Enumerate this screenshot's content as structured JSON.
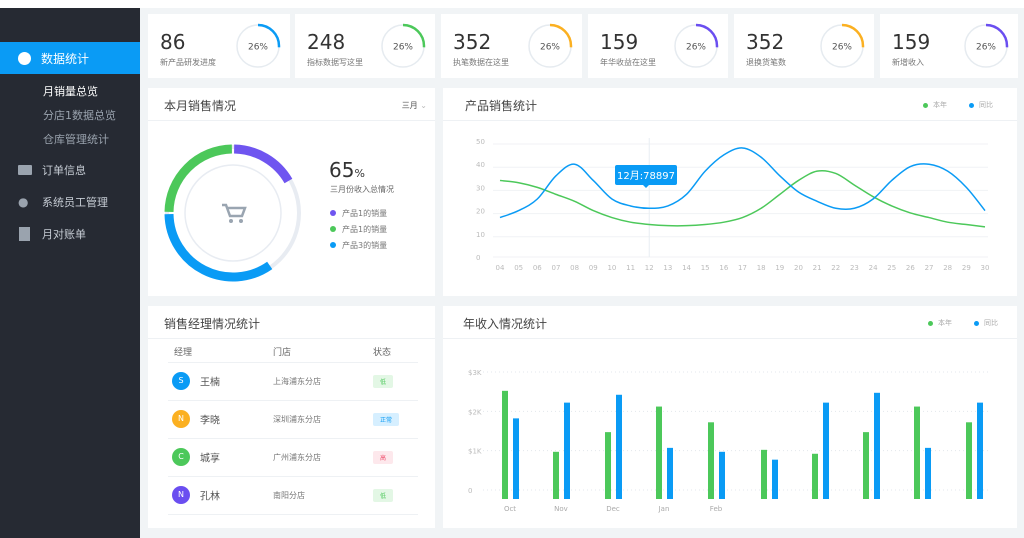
{
  "sidebar": {
    "active": "数据统计",
    "sub_items": [
      "月销量总览",
      "分店1数据总览",
      "仓库管理统计"
    ],
    "items": [
      "订单信息",
      "系统员工管理",
      "月对账单"
    ]
  },
  "stats": [
    {
      "value": "86",
      "label": "新产品研发进度",
      "percent": "26%",
      "color": "#0a9bf5"
    },
    {
      "value": "248",
      "label": "指标数据写这里",
      "percent": "26%",
      "color": "#4cc85a"
    },
    {
      "value": "352",
      "label": "执笔数据在这里",
      "percent": "26%",
      "color": "#fbb021"
    },
    {
      "value": "159",
      "label": "年华收益在这里",
      "percent": "26%",
      "color": "#6a4ef0"
    },
    {
      "value": "352",
      "label": "退换货笔数",
      "percent": "26%",
      "color": "#fbb021"
    },
    {
      "value": "159",
      "label": "新增收入",
      "percent": "26%",
      "color": "#6a4ef0"
    }
  ],
  "monthly": {
    "title": "本月销售情况",
    "month_select": "三月",
    "percent": "65",
    "percent_unit": "%",
    "subtitle": "三月份收入总情况",
    "legend": [
      {
        "label": "产品1的销量",
        "color": "#6f55f0"
      },
      {
        "label": "产品1的销量",
        "color": "#4cc85a"
      },
      {
        "label": "产品3的销量",
        "color": "#0a9bf5"
      }
    ]
  },
  "chart_data": [
    {
      "type": "line",
      "title": "产品销售统计",
      "legend": [
        "本年",
        "同比"
      ],
      "tooltip": "12月:78897",
      "ylim": [
        0,
        50
      ],
      "yticks": [
        "0",
        "10",
        "20",
        "30",
        "40",
        "50"
      ],
      "x": [
        "04",
        "05",
        "06",
        "07",
        "08",
        "09",
        "10",
        "11",
        "12",
        "13",
        "14",
        "15",
        "16",
        "17",
        "18",
        "19",
        "20",
        "21",
        "22",
        "23",
        "24",
        "25",
        "26",
        "27",
        "28",
        "29",
        "30"
      ],
      "series": [
        {
          "name": "本年",
          "color": "#4cc85a",
          "values": [
            33,
            32,
            30,
            27,
            24,
            20,
            17,
            15,
            14,
            13.5,
            13.5,
            14,
            15,
            17,
            21,
            27,
            33,
            37,
            36,
            31,
            26,
            22,
            19,
            17,
            15,
            14,
            13
          ]
        },
        {
          "name": "同比",
          "color": "#0a9bf5",
          "values": [
            17,
            20,
            25,
            35,
            40,
            33,
            25,
            22,
            21,
            22,
            27,
            37,
            44,
            47,
            43,
            35,
            28,
            24,
            21,
            21,
            25,
            33,
            39,
            40,
            37,
            30,
            20
          ]
        }
      ]
    },
    {
      "type": "bar",
      "title": "年收入情况统计",
      "legend": [
        "本年",
        "同比"
      ],
      "ylim": [
        0,
        3000
      ],
      "yticks": [
        "0",
        "$1K",
        "$2K",
        "$3K"
      ],
      "categories": [
        "Oct",
        "Nov",
        "Dec",
        "Jan",
        "Feb",
        "",
        "",
        "",
        "",
        ""
      ],
      "series": [
        {
          "name": "本年",
          "color": "#4cc85a",
          "values": [
            2750,
            1200,
            1700,
            2350,
            1950,
            1250,
            1150,
            1700,
            2350,
            1950
          ]
        },
        {
          "name": "同比",
          "color": "#0a9bf5",
          "values": [
            2050,
            2450,
            2650,
            1300,
            1200,
            1000,
            2450,
            2700,
            1300,
            2450
          ]
        }
      ]
    }
  ],
  "managers": {
    "title": "销售经理情况统计",
    "headers": [
      "经理",
      "门店",
      "状态"
    ],
    "rows": [
      {
        "initial": "S",
        "name": "王楠",
        "store": "上海浦东分店",
        "status": "低",
        "avatar": "#0a9bf5",
        "bg": "#e3f7e5",
        "fg": "#4cc85a"
      },
      {
        "initial": "N",
        "name": "李晓",
        "store": "深圳浦东分店",
        "status": "正常",
        "avatar": "#fbb021",
        "bg": "#d6efff",
        "fg": "#0a9bf5"
      },
      {
        "initial": "C",
        "name": "城享",
        "store": "广州浦东分店",
        "status": "高",
        "avatar": "#4cc85a",
        "bg": "#fde8ec",
        "fg": "#f0506e"
      },
      {
        "initial": "N",
        "name": "孔林",
        "store": "南阳分店",
        "status": "低",
        "avatar": "#6a4ef0",
        "bg": "#e3f7e5",
        "fg": "#4cc85a"
      }
    ]
  }
}
